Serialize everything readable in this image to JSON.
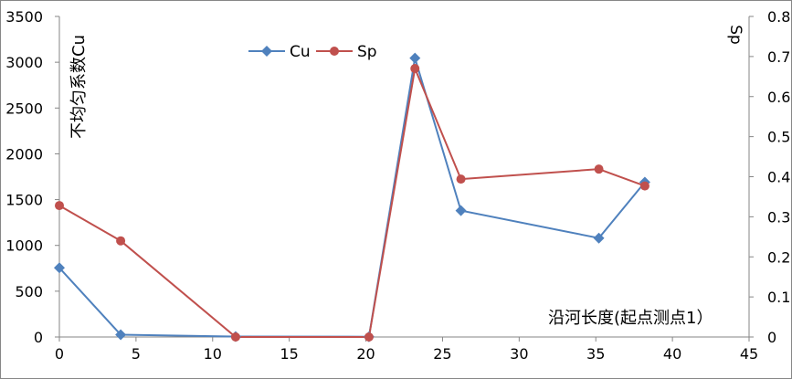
{
  "chart_data": {
    "type": "line",
    "title": "",
    "xlabel": "沿河长度(起点测点1）",
    "ylabel_left": "不均匀系数Cu",
    "ylabel_right": "Sp",
    "xlim": [
      0,
      45
    ],
    "ylim_left": [
      0,
      3500
    ],
    "ylim_right": [
      0,
      0.8
    ],
    "x_ticks": [
      "0",
      "5",
      "10",
      "15",
      "20",
      "25",
      "30",
      "35",
      "40",
      "45"
    ],
    "y_left_ticks": [
      "0",
      "500",
      "1000",
      "1500",
      "2000",
      "2500",
      "3000",
      "3500"
    ],
    "y_right_ticks": [
      "0",
      "0.1",
      "0.2",
      "0.3",
      "0.4",
      "0.5",
      "0.6",
      "0.7",
      "0.8"
    ],
    "grid": false,
    "legend_position": "top-left",
    "series": [
      {
        "name": "Cu",
        "axis": "left",
        "color": "#4f81bd",
        "marker": "diamond",
        "x": [
          0,
          4,
          11.5,
          20.2,
          23.2,
          26.2,
          35.2,
          38.2
        ],
        "y": [
          755,
          25,
          5,
          3,
          3045,
          1380,
          1080,
          1690
        ]
      },
      {
        "name": "Sp",
        "axis": "right",
        "color": "#c0504d",
        "marker": "circle",
        "x": [
          0,
          4,
          11.5,
          20.2,
          23.2,
          26.2,
          35.2,
          38.2
        ],
        "y": [
          0.328,
          0.24,
          0.0,
          0.0,
          0.67,
          0.394,
          0.419,
          0.377
        ]
      }
    ]
  }
}
